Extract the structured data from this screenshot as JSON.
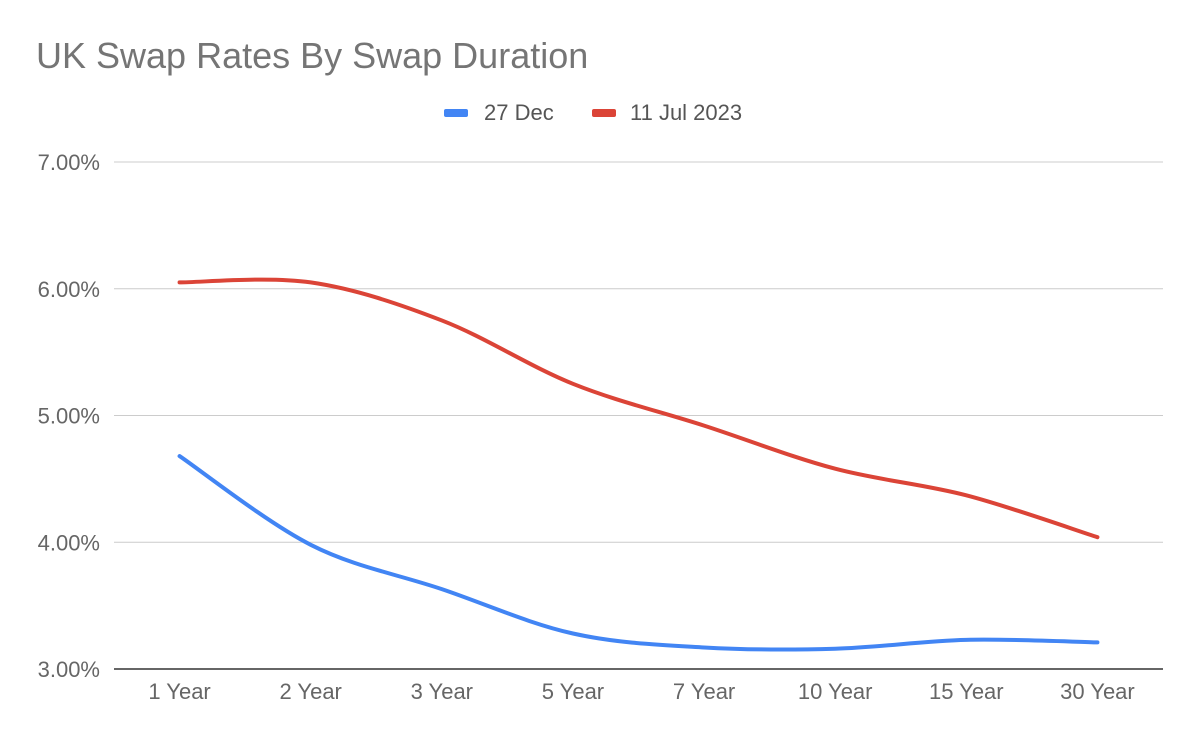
{
  "chart_data": {
    "type": "line",
    "title": "UK Swap Rates By Swap Duration",
    "xlabel": "",
    "ylabel": "",
    "categories": [
      "1 Year",
      "2 Year",
      "3 Year",
      "5 Year",
      "7 Year",
      "10 Year",
      "15 Year",
      "30 Year"
    ],
    "series": [
      {
        "name": "27 Dec",
        "color": "#4285F4",
        "values": [
          4.68,
          3.98,
          3.63,
          3.28,
          3.17,
          3.16,
          3.23,
          3.21
        ]
      },
      {
        "name": "11 Jul 2023",
        "color": "#DB4437",
        "values": [
          6.05,
          6.05,
          5.75,
          5.25,
          4.92,
          4.58,
          4.37,
          4.04
        ]
      }
    ],
    "ylim": [
      3,
      7
    ],
    "y_ticks": [
      "3.00%",
      "4.00%",
      "5.00%",
      "6.00%",
      "7.00%"
    ],
    "grid": true,
    "legend_position": "top-center",
    "gridline_color": "#cccccc",
    "axis_color": "#333333"
  }
}
